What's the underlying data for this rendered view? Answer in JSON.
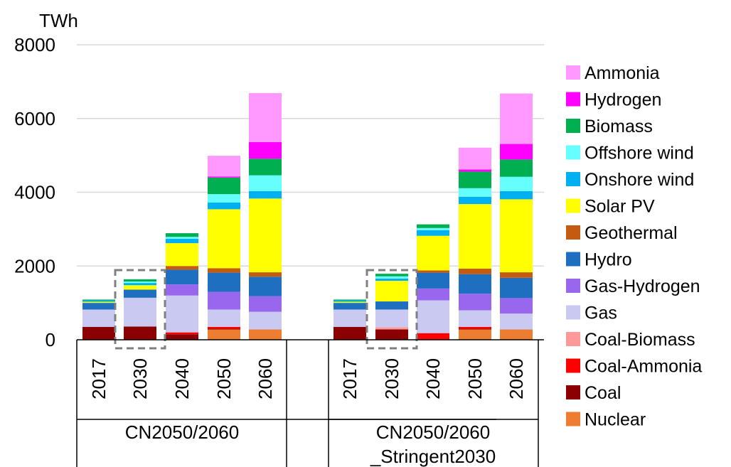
{
  "chart_data": {
    "type": "bar",
    "stacked": true,
    "ylabel": "TWh",
    "ylim": [
      0,
      8000
    ],
    "yticks": [
      0,
      2000,
      4000,
      6000,
      8000
    ],
    "grid": "horizontal",
    "legend_position": "right",
    "categories": [
      "2017",
      "2030",
      "2040",
      "2050",
      "2060",
      "2017",
      "2030",
      "2040",
      "2050",
      "2060"
    ],
    "groups": [
      {
        "label": "CN2050/2060",
        "categories": [
          "2017",
          "2030",
          "2040",
          "2050",
          "2060"
        ]
      },
      {
        "label_lines": [
          "CN2050/2060",
          "_Stringent2030"
        ],
        "categories": [
          "2017",
          "2030",
          "2040",
          "2050",
          "2060"
        ]
      }
    ],
    "highlighted": [
      "CN2050/2060 2030",
      "CN2050/2060_Stringent2030 2030"
    ],
    "series": [
      {
        "name": "Nuclear",
        "color": "#ED7D31",
        "values": [
          0,
          0,
          0,
          280,
          280,
          0,
          0,
          0,
          280,
          280
        ]
      },
      {
        "name": "Coal",
        "color": "#8B0000",
        "values": [
          350,
          360,
          150,
          20,
          0,
          350,
          280,
          0,
          20,
          0
        ]
      },
      {
        "name": "Coal-Ammonia",
        "color": "#FF0000",
        "values": [
          0,
          0,
          50,
          50,
          0,
          0,
          0,
          180,
          50,
          0
        ]
      },
      {
        "name": "Coal-Biomass",
        "color": "#FF9999",
        "values": [
          0,
          0,
          0,
          0,
          0,
          0,
          60,
          0,
          0,
          0
        ]
      },
      {
        "name": "Gas",
        "color": "#C9C9F2",
        "values": [
          470,
          780,
          1000,
          470,
          480,
          470,
          480,
          890,
          450,
          430
        ]
      },
      {
        "name": "Gas-Hydrogen",
        "color": "#9966EE",
        "values": [
          0,
          0,
          300,
          480,
          420,
          0,
          0,
          320,
          450,
          420
        ]
      },
      {
        "name": "Hydro",
        "color": "#1F6FC1",
        "values": [
          180,
          220,
          400,
          520,
          530,
          180,
          220,
          430,
          530,
          550
        ]
      },
      {
        "name": "Geothermal",
        "color": "#C55A11",
        "values": [
          0,
          0,
          100,
          120,
          120,
          0,
          0,
          60,
          150,
          150
        ]
      },
      {
        "name": "Solar PV",
        "color": "#FFFF00",
        "values": [
          30,
          120,
          620,
          1600,
          2000,
          30,
          560,
          940,
          1750,
          1980
        ]
      },
      {
        "name": "Onshore wind",
        "color": "#00B0F0",
        "values": [
          40,
          60,
          120,
          180,
          200,
          40,
          60,
          150,
          200,
          220
        ]
      },
      {
        "name": "Offshore wind",
        "color": "#66FFFF",
        "values": [
          0,
          40,
          50,
          230,
          430,
          0,
          60,
          60,
          230,
          390
        ]
      },
      {
        "name": "Biomass",
        "color": "#00B050",
        "values": [
          20,
          60,
          100,
          450,
          450,
          20,
          70,
          100,
          450,
          470
        ]
      },
      {
        "name": "Hydrogen",
        "color": "#FF00FF",
        "values": [
          0,
          0,
          0,
          30,
          450,
          0,
          0,
          0,
          60,
          420
        ]
      },
      {
        "name": "Ammonia",
        "color": "#FF99FF",
        "values": [
          0,
          0,
          0,
          560,
          1330,
          0,
          0,
          0,
          590,
          1370
        ]
      }
    ],
    "legend_order": [
      "Ammonia",
      "Hydrogen",
      "Biomass",
      "Offshore wind",
      "Onshore wind",
      "Solar PV",
      "Geothermal",
      "Hydro",
      "Gas-Hydrogen",
      "Gas",
      "Coal-Biomass",
      "Coal-Ammonia",
      "Coal",
      "Nuclear"
    ]
  }
}
